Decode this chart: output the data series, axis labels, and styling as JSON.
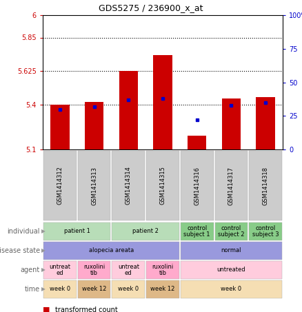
{
  "title": "GDS5275 / 236900_x_at",
  "samples": [
    "GSM1414312",
    "GSM1414313",
    "GSM1414314",
    "GSM1414315",
    "GSM1414316",
    "GSM1414317",
    "GSM1414318"
  ],
  "transformed_count": [
    5.4,
    5.42,
    5.625,
    5.73,
    5.19,
    5.44,
    5.45
  ],
  "percentile_rank": [
    30,
    32,
    37,
    38,
    22,
    33,
    35
  ],
  "y_min": 5.1,
  "y_max": 6.0,
  "y_ticks": [
    5.1,
    5.4,
    5.625,
    5.85,
    6.0
  ],
  "y_tick_labels": [
    "5.1",
    "5.4",
    "5.625",
    "5.85",
    "6"
  ],
  "y2_ticks": [
    0,
    25,
    50,
    75,
    100
  ],
  "y2_tick_labels": [
    "0",
    "25",
    "50",
    "75",
    "100%"
  ],
  "bar_color": "#cc0000",
  "dot_color": "#0000cc",
  "row_labels": [
    "individual",
    "disease state",
    "agent",
    "time"
  ],
  "individual_groups": [
    {
      "label": "patient 1",
      "cols": [
        0,
        1
      ],
      "color": "#b8ddb8"
    },
    {
      "label": "patient 2",
      "cols": [
        2,
        3
      ],
      "color": "#b8ddb8"
    },
    {
      "label": "control\nsubject 1",
      "cols": [
        4
      ],
      "color": "#88cc88"
    },
    {
      "label": "control\nsubject 2",
      "cols": [
        5
      ],
      "color": "#88cc88"
    },
    {
      "label": "control\nsubject 3",
      "cols": [
        6
      ],
      "color": "#88cc88"
    }
  ],
  "disease_groups": [
    {
      "label": "alopecia areata",
      "cols": [
        0,
        1,
        2,
        3
      ],
      "color": "#9999dd"
    },
    {
      "label": "normal",
      "cols": [
        4,
        5,
        6
      ],
      "color": "#9999dd"
    }
  ],
  "agent_groups": [
    {
      "label": "untreat\ned",
      "cols": [
        0
      ],
      "color": "#ffccdd"
    },
    {
      "label": "ruxolini\ntib",
      "cols": [
        1
      ],
      "color": "#ffaacc"
    },
    {
      "label": "untreat\ned",
      "cols": [
        2
      ],
      "color": "#ffccdd"
    },
    {
      "label": "ruxolini\ntib",
      "cols": [
        3
      ],
      "color": "#ffaacc"
    },
    {
      "label": "untreated",
      "cols": [
        4,
        5,
        6
      ],
      "color": "#ffccdd"
    }
  ],
  "time_groups": [
    {
      "label": "week 0",
      "cols": [
        0
      ],
      "color": "#f5deb3"
    },
    {
      "label": "week 12",
      "cols": [
        1
      ],
      "color": "#deb887"
    },
    {
      "label": "week 0",
      "cols": [
        2
      ],
      "color": "#f5deb3"
    },
    {
      "label": "week 12",
      "cols": [
        3
      ],
      "color": "#deb887"
    },
    {
      "label": "week 0",
      "cols": [
        4,
        5,
        6
      ],
      "color": "#f5deb3"
    }
  ],
  "sample_box_color": "#cccccc",
  "left_label_color": "#666666",
  "arrow_color": "#999999"
}
